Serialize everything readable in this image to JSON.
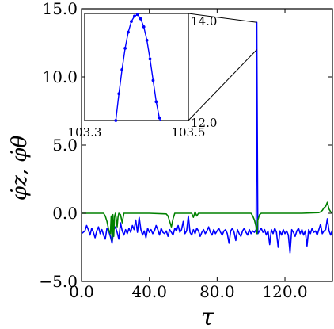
{
  "chart_data": {
    "type": "line",
    "xlabel": "τ",
    "ylabel": "φ̇z, φ̇θ",
    "xlim": [
      0,
      148
    ],
    "ylim": [
      -5,
      15
    ],
    "xticks": [
      0,
      40,
      80,
      120
    ],
    "xtick_labels": [
      "0.0",
      "40.0",
      "80.0",
      "120.0"
    ],
    "yticks": [
      -5,
      0,
      5,
      10,
      15
    ],
    "ytick_labels": [
      "−5.0",
      "0.0",
      "5.0",
      "10.0",
      "15.0"
    ],
    "grid": false,
    "series": [
      {
        "color": "#0000ff",
        "x": [
          0,
          2,
          3,
          4,
          5,
          6,
          7,
          8,
          9,
          10,
          11,
          12,
          13,
          14,
          15,
          16,
          17,
          18,
          19,
          20,
          21,
          22,
          23,
          24,
          25,
          26,
          27,
          28,
          29,
          30,
          31,
          32,
          33,
          34,
          35,
          36,
          37,
          38,
          39,
          40,
          41,
          42,
          43,
          44,
          45,
          46,
          47,
          48,
          49,
          50,
          51,
          52,
          53,
          54,
          55,
          56,
          57,
          58,
          59,
          60,
          61,
          62,
          63,
          64,
          65,
          66,
          67,
          68,
          69,
          70,
          71,
          72,
          73,
          74,
          75,
          76,
          77,
          78,
          79,
          80,
          81,
          82,
          83,
          84,
          85,
          86,
          87,
          88,
          89,
          90,
          91,
          92,
          93,
          94,
          95,
          96,
          97,
          98,
          99,
          100,
          101,
          102,
          103,
          103.35,
          103.4,
          103.45,
          104,
          105,
          106,
          107,
          108,
          109,
          110,
          111,
          112,
          113,
          114,
          115,
          116,
          117,
          118,
          119,
          120,
          121,
          122,
          123,
          124,
          125,
          126,
          127,
          128,
          129,
          130,
          131,
          132,
          133,
          134,
          135,
          136,
          137,
          138,
          139,
          140,
          141,
          142,
          143,
          144,
          145,
          146,
          147,
          148
        ],
        "y": [
          -1.5,
          -1.3,
          -0.9,
          -1.2,
          -1.6,
          -1.1,
          -1.4,
          -1.8,
          -1.3,
          -1.0,
          -1.5,
          -1.2,
          -1.6,
          -1.9,
          -1.1,
          -1.3,
          -1.7,
          -2.2,
          -1.2,
          -1.0,
          -1.4,
          -1.9,
          -0.7,
          -1.3,
          -1.6,
          -1.2,
          -1.5,
          -1.1,
          -1.4,
          -0.9,
          -1.2,
          -0.5,
          -1.4,
          -0.3,
          -1.2,
          -1.6,
          -1.3,
          -1.8,
          -1.1,
          -1.4,
          -1.2,
          -1.5,
          -1.3,
          -0.9,
          -1.2,
          -1.6,
          -1.1,
          -1.4,
          -1.5,
          -1.3,
          -1.7,
          -1.2,
          -1.4,
          -1.6,
          -1.1,
          -1.3,
          -0.9,
          -1.4,
          -1.2,
          -0.6,
          -1.5,
          -1.3,
          -0.2,
          -1.4,
          -1.6,
          -1.2,
          -1.5,
          -1.1,
          -1.3,
          -1.7,
          -1.4,
          -1.2,
          -1.5,
          -1.3,
          -1.0,
          -1.4,
          -1.6,
          -1.2,
          -1.5,
          -1.3,
          -1.1,
          -1.4,
          -1.6,
          -1.3,
          -1.2,
          -1.5,
          -2.2,
          -1.3,
          -1.1,
          -1.4,
          -2.0,
          -1.2,
          -1.5,
          -1.7,
          -1.3,
          -1.1,
          -1.4,
          -1.6,
          -1.2,
          -1.5,
          -1.3,
          -1.4,
          -1.2,
          12.0,
          14.0,
          12.0,
          -1.5,
          -1.3,
          -1.1,
          -1.4,
          -1.2,
          -1.6,
          -1.3,
          -2.3,
          -1.2,
          -1.5,
          -1.1,
          -1.4,
          -2.5,
          -1.3,
          -1.6,
          -1.2,
          -1.5,
          -1.3,
          -1.6,
          -2.9,
          -1.2,
          -1.4,
          -1.7,
          -1.3,
          -1.1,
          -1.5,
          -1.2,
          -1.6,
          -1.3,
          -2.4,
          -1.2,
          -1.5,
          -1.1,
          -1.4,
          -1.3,
          -1.6,
          -1.2,
          -0.8,
          -1.5,
          -1.3,
          -1.2,
          -0.4,
          -1.3,
          -1.6,
          -1.2
        ]
      },
      {
        "color": "#008000",
        "x": [
          0,
          10,
          13,
          14,
          15,
          16,
          17,
          17.5,
          18,
          18.5,
          19,
          19.5,
          20,
          20.5,
          21,
          21.5,
          22,
          23,
          24,
          25,
          30,
          40,
          50,
          51,
          52,
          53,
          54,
          55,
          60,
          65,
          66,
          67,
          68,
          69,
          70,
          80,
          90,
          100,
          101,
          102,
          103,
          103.5,
          104,
          105,
          106,
          110,
          120,
          130,
          140,
          141,
          142,
          143,
          144,
          145,
          146,
          147,
          148
        ],
        "y": [
          0,
          0,
          0,
          -0.2,
          -0.6,
          -1.2,
          -1.5,
          -0.2,
          -2.0,
          -0.1,
          -1.7,
          -0.2,
          0,
          -0.4,
          -1.0,
          -0.3,
          0,
          -0.1,
          -0.7,
          0,
          0,
          0,
          -0.05,
          -0.2,
          -0.6,
          -1.0,
          -0.4,
          0,
          0,
          0,
          -0.3,
          0.1,
          -0.2,
          0,
          0,
          0,
          0,
          0,
          -0.2,
          -0.5,
          -1.0,
          -1.5,
          -0.5,
          -0.1,
          0,
          0,
          0,
          0,
          0.05,
          0.1,
          0.2,
          0.4,
          0.5,
          0.8,
          0.3,
          0.1,
          0
        ]
      }
    ],
    "inset": {
      "xlim": [
        103.3,
        103.5
      ],
      "ylim": [
        12.0,
        14.0
      ],
      "xtick_labels": [
        "103.3",
        "103.5"
      ],
      "ytick_labels": [
        "14.0",
        "12.0"
      ],
      "x": [
        103.36,
        103.366,
        103.372,
        103.378,
        103.384,
        103.39,
        103.396,
        103.402,
        103.408,
        103.414,
        103.42,
        103.426,
        103.432,
        103.438,
        103.444,
        103.45
      ],
      "y": [
        12.0,
        12.5,
        12.95,
        13.35,
        13.65,
        13.85,
        13.95,
        13.98,
        13.9,
        13.75,
        13.5,
        13.15,
        12.75,
        12.35,
        12.05,
        11.9
      ]
    }
  }
}
